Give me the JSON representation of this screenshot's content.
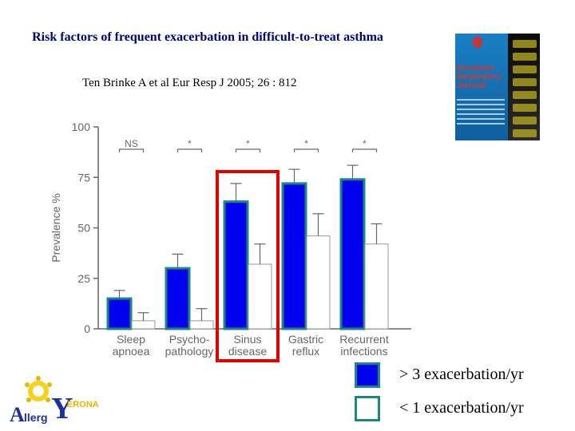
{
  "slide": {
    "title": "Risk factors of frequent exacerbation in difficult-to-treat asthma",
    "citation": "Ten Brinke A et al  Eur Resp J 2005; 26 : 812"
  },
  "journal_cover": {
    "name": "European Respiratory Journal"
  },
  "legend": {
    "high_label": "> 3 exacerbation/yr",
    "low_label": "< 1 exacerbation/yr",
    "high_color": "#0000ee",
    "low_color": "#ffffff",
    "border_color": "#1a8a7a"
  },
  "logo": {
    "text_a": "A",
    "text_llerg": "llerg",
    "text_y": "Y",
    "text_verona": "ERONA"
  },
  "chart_data": {
    "type": "bar",
    "ylabel": "Prevalence  %",
    "ylim": [
      0,
      100
    ],
    "yticks": [
      0,
      25,
      50,
      75,
      100
    ],
    "categories": [
      "Sleep apnoea",
      "Psycho-pathology",
      "Sinus disease",
      "Gastric reflux",
      "Recurrent infections"
    ],
    "category_lines": [
      [
        "Sleep",
        "apnoea"
      ],
      [
        "Psycho-",
        "pathology"
      ],
      [
        "Sinus",
        "disease"
      ],
      [
        "Gastric",
        "reflux"
      ],
      [
        "Recurrent",
        "infections"
      ]
    ],
    "series": [
      {
        "values": [
          15,
          30,
          63,
          72,
          74
        ],
        "errors": [
          4,
          7,
          9,
          7,
          7
        ],
        "color": "#0000ee"
      },
      {
        "values": [
          4,
          4,
          32,
          46,
          42
        ],
        "errors": [
          4,
          6,
          10,
          11,
          10
        ],
        "color": "#ffffff"
      }
    ],
    "significance": [
      "NS",
      "*",
      "*",
      "*",
      "*"
    ],
    "highlight_category": 2
  }
}
